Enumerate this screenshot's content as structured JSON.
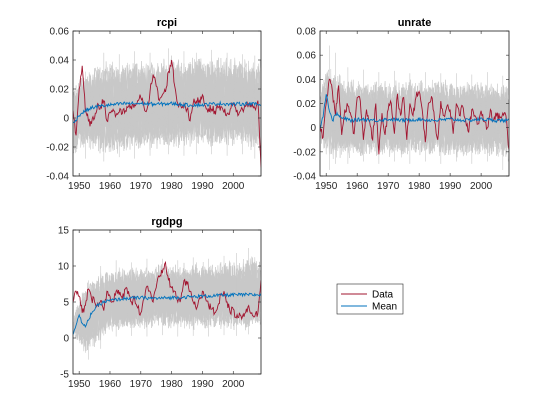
{
  "figure": {
    "colors": {
      "data": "#a2142f",
      "mean": "#0072bd",
      "simulations": "#c8c8c8",
      "axes": "#262626"
    },
    "legend": {
      "placement": "center, lower-right quadrant",
      "entries": [
        "Data",
        "Mean"
      ]
    }
  },
  "chart_data": [
    {
      "type": "line",
      "title": "rcpi",
      "xlim": [
        1948,
        2009
      ],
      "ylim": [
        -0.04,
        0.06
      ],
      "xticks": [
        1950,
        1960,
        1970,
        1980,
        1990,
        2000
      ],
      "yticks": [
        -0.04,
        -0.02,
        0,
        0.02,
        0.04,
        0.06
      ],
      "ytick_labels": [
        "-0.04",
        "-0.02",
        "0",
        "0.02",
        "0.04",
        "0.06"
      ],
      "grid": false,
      "band": {
        "x": [
          1948,
          1950,
          1953,
          1956,
          1960,
          1965,
          1970,
          1975,
          1980,
          1985,
          1990,
          1995,
          2000,
          2005,
          2009
        ],
        "lower": [
          -0.03,
          -0.022,
          -0.024,
          -0.026,
          -0.026,
          -0.024,
          -0.024,
          -0.023,
          -0.022,
          -0.022,
          -0.022,
          -0.022,
          -0.022,
          -0.022,
          -0.025
        ],
        "upper": [
          0.02,
          0.03,
          0.036,
          0.038,
          0.04,
          0.04,
          0.042,
          0.042,
          0.044,
          0.044,
          0.044,
          0.044,
          0.043,
          0.042,
          0.04
        ],
        "spikes": [
          [
            1952,
            -0.028,
            0.032
          ],
          [
            1958,
            -0.03,
            0.045
          ],
          [
            1963,
            -0.027,
            0.044
          ],
          [
            1968,
            -0.028,
            0.046
          ],
          [
            1973,
            -0.026,
            0.045
          ],
          [
            1979,
            -0.025,
            0.048
          ],
          [
            1984,
            -0.026,
            0.046
          ],
          [
            1988,
            -0.025,
            0.045
          ],
          [
            1993,
            -0.025,
            0.047
          ],
          [
            1998,
            -0.026,
            0.045
          ],
          [
            2003,
            -0.025,
            0.044
          ],
          [
            2007,
            -0.028,
            0.043
          ]
        ]
      },
      "series": [
        {
          "name": "Data",
          "x": [
            1948,
            1949,
            1950,
            1951,
            1952,
            1953,
            1954,
            1955,
            1956,
            1957,
            1958,
            1959,
            1960,
            1961,
            1962,
            1963,
            1964,
            1965,
            1966,
            1967,
            1968,
            1969,
            1970,
            1971,
            1972,
            1973,
            1974,
            1975,
            1976,
            1977,
            1978,
            1979,
            1980,
            1981,
            1982,
            1983,
            1984,
            1985,
            1986,
            1987,
            1988,
            1989,
            1990,
            1991,
            1992,
            1993,
            1994,
            1995,
            1996,
            1997,
            1998,
            1999,
            2000,
            2001,
            2002,
            2003,
            2004,
            2005,
            2006,
            2007,
            2008,
            2009
          ],
          "values": [
            0.005,
            -0.012,
            0.02,
            0.036,
            0.005,
            -0.002,
            -0.004,
            0.0,
            0.01,
            0.008,
            0.012,
            -0.002,
            0.004,
            0.006,
            0.002,
            0.004,
            0.003,
            0.005,
            0.008,
            0.006,
            0.009,
            0.012,
            0.014,
            0.008,
            0.006,
            0.018,
            0.03,
            0.022,
            0.012,
            0.016,
            0.018,
            0.032,
            0.04,
            0.022,
            0.01,
            0.008,
            0.01,
            0.006,
            -0.002,
            0.01,
            0.012,
            0.012,
            0.016,
            0.008,
            0.006,
            0.006,
            0.005,
            0.007,
            0.008,
            0.004,
            0.003,
            0.006,
            0.01,
            0.004,
            0.004,
            0.006,
            0.008,
            0.01,
            0.008,
            0.007,
            0.012,
            -0.034
          ]
        },
        {
          "name": "Mean",
          "x": [
            1948,
            1950,
            1952,
            1954,
            1956,
            1960,
            1965,
            1970,
            1975,
            1980,
            1985,
            1990,
            1995,
            2000,
            2005,
            2009
          ],
          "values": [
            -0.004,
            0.002,
            0.005,
            0.007,
            0.008,
            0.009,
            0.01,
            0.01,
            0.0095,
            0.01,
            0.009,
            0.009,
            0.01,
            0.0095,
            0.01,
            0.009
          ]
        }
      ]
    },
    {
      "type": "line",
      "title": "unrate",
      "xlim": [
        1948,
        2009
      ],
      "ylim": [
        -0.04,
        0.08
      ],
      "xticks": [
        1950,
        1960,
        1970,
        1980,
        1990,
        2000
      ],
      "yticks": [
        -0.04,
        -0.02,
        0,
        0.02,
        0.04,
        0.06,
        0.08
      ],
      "ytick_labels": [
        "-0.04",
        "-0.02",
        "0",
        "0.02",
        "0.04",
        "0.06",
        "0.08"
      ],
      "grid": false,
      "band": {
        "x": [
          1948,
          1950,
          1952,
          1954,
          1956,
          1960,
          1965,
          1970,
          1975,
          1980,
          1985,
          1990,
          1995,
          2000,
          2005,
          2009
        ],
        "lower": [
          -0.01,
          -0.025,
          -0.03,
          -0.028,
          -0.026,
          -0.026,
          -0.025,
          -0.025,
          -0.025,
          -0.025,
          -0.025,
          -0.025,
          -0.025,
          -0.025,
          -0.025,
          -0.03
        ],
        "upper": [
          0.03,
          0.055,
          0.05,
          0.045,
          0.042,
          0.04,
          0.04,
          0.04,
          0.04,
          0.04,
          0.04,
          0.04,
          0.04,
          0.04,
          0.04,
          0.035
        ],
        "spikes": [
          [
            1951,
            -0.035,
            0.068
          ],
          [
            1953,
            -0.03,
            0.062
          ],
          [
            1957,
            -0.03,
            0.05
          ],
          [
            1962,
            -0.028,
            0.048
          ],
          [
            1967,
            -0.03,
            0.046
          ],
          [
            1972,
            -0.028,
            0.047
          ],
          [
            1977,
            -0.03,
            0.045
          ],
          [
            1982,
            -0.028,
            0.046
          ],
          [
            1987,
            -0.03,
            0.045
          ],
          [
            1992,
            -0.028,
            0.045
          ],
          [
            1997,
            -0.03,
            0.044
          ],
          [
            2002,
            -0.028,
            0.046
          ],
          [
            2007,
            -0.035,
            0.043
          ]
        ]
      },
      "series": [
        {
          "name": "Data",
          "x": [
            1948,
            1949,
            1950,
            1951,
            1952,
            1953,
            1954,
            1955,
            1956,
            1957,
            1958,
            1959,
            1960,
            1961,
            1962,
            1963,
            1964,
            1965,
            1966,
            1967,
            1968,
            1969,
            1970,
            1971,
            1972,
            1973,
            1974,
            1975,
            1976,
            1977,
            1978,
            1979,
            1980,
            1981,
            1982,
            1983,
            1984,
            1985,
            1986,
            1987,
            1988,
            1989,
            1990,
            1991,
            1992,
            1993,
            1994,
            1995,
            1996,
            1997,
            1998,
            1999,
            2000,
            2001,
            2002,
            2003,
            2004,
            2005,
            2006,
            2007,
            2008,
            2009
          ],
          "values": [
            0.002,
            -0.008,
            0.02,
            0.04,
            0.03,
            0.01,
            0.035,
            -0.006,
            0.015,
            0.018,
            0.01,
            -0.005,
            0.025,
            0.022,
            -0.01,
            0.015,
            0.005,
            -0.01,
            0.02,
            -0.022,
            0.012,
            -0.006,
            0.015,
            0.02,
            -0.005,
            0.028,
            0.01,
            0.025,
            -0.01,
            0.02,
            0.01,
            0.025,
            0.03,
            0.015,
            -0.012,
            0.02,
            0.026,
            0.005,
            -0.01,
            0.022,
            0.01,
            0.018,
            0.015,
            -0.005,
            0.02,
            0.01,
            0.018,
            0.006,
            -0.004,
            0.015,
            0.01,
            0.003,
            0.014,
            0.005,
            0.0,
            0.015,
            0.006,
            0.01,
            0.008,
            0.012,
            0.01,
            -0.018
          ]
        },
        {
          "name": "Mean",
          "x": [
            1948,
            1949,
            1950,
            1951,
            1952,
            1953,
            1955,
            1958,
            1962,
            1966,
            1970,
            1975,
            1980,
            1985,
            1990,
            1995,
            2000,
            2005,
            2009
          ],
          "values": [
            0.0,
            0.01,
            0.028,
            0.015,
            0.005,
            0.012,
            0.008,
            0.006,
            0.007,
            0.006,
            0.007,
            0.006,
            0.007,
            0.006,
            0.007,
            0.006,
            0.007,
            0.006,
            0.006
          ]
        }
      ]
    },
    {
      "type": "line",
      "title": "rgdpg",
      "xlim": [
        1948,
        2009
      ],
      "ylim": [
        -5,
        15
      ],
      "xticks": [
        1950,
        1960,
        1970,
        1980,
        1990,
        2000
      ],
      "yticks": [
        -5,
        0,
        5,
        10,
        15
      ],
      "ytick_labels": [
        "-5",
        "0",
        "5",
        "10",
        "15"
      ],
      "grid": false,
      "band": {
        "x": [
          1948,
          1950,
          1952,
          1955,
          1958,
          1960,
          1965,
          1970,
          1975,
          1980,
          1985,
          1990,
          1995,
          2000,
          2005,
          2009
        ],
        "lower": [
          0.5,
          -1.2,
          -2.5,
          -1.5,
          0.0,
          0.8,
          1.0,
          1.0,
          1.2,
          1.0,
          1.0,
          1.0,
          1.0,
          1.0,
          1.0,
          1.2
        ],
        "upper": [
          2.5,
          5.5,
          7.5,
          8.5,
          9.5,
          9.8,
          10.0,
          10.2,
          10.5,
          10.5,
          10.5,
          10.8,
          10.8,
          11.0,
          11.5,
          11.0
        ],
        "spikes": [
          [
            1953,
            -3.0,
            8.0
          ],
          [
            1957,
            -1.5,
            10.0
          ],
          [
            1962,
            0.2,
            10.8
          ],
          [
            1967,
            0.3,
            10.5
          ],
          [
            1972,
            0.2,
            11.0
          ],
          [
            1977,
            0.4,
            11.0
          ],
          [
            1982,
            0.2,
            10.8
          ],
          [
            1987,
            0.3,
            11.2
          ],
          [
            1992,
            0.2,
            11.0
          ],
          [
            1997,
            0.4,
            11.4
          ],
          [
            2001,
            0.3,
            11.8
          ],
          [
            2005,
            0.5,
            12.5
          ]
        ]
      },
      "series": [
        {
          "name": "Data",
          "x": [
            1948,
            1949,
            1950,
            1951,
            1952,
            1953,
            1954,
            1955,
            1956,
            1957,
            1958,
            1959,
            1960,
            1961,
            1962,
            1963,
            1964,
            1965,
            1966,
            1967,
            1968,
            1969,
            1970,
            1971,
            1972,
            1973,
            1974,
            1975,
            1976,
            1977,
            1978,
            1979,
            1980,
            1981,
            1982,
            1983,
            1984,
            1985,
            1986,
            1987,
            1988,
            1989,
            1990,
            1991,
            1992,
            1993,
            1994,
            1995,
            1996,
            1997,
            1998,
            1999,
            2000,
            2001,
            2002,
            2003,
            2004,
            2005,
            2006,
            2007,
            2008,
            2009
          ],
          "values": [
            5.0,
            6.5,
            5.8,
            3.5,
            4.5,
            6.8,
            5.5,
            5.0,
            4.8,
            5.2,
            3.8,
            6.5,
            5.8,
            5.0,
            6.5,
            6.0,
            5.5,
            6.8,
            6.5,
            5.0,
            5.5,
            4.2,
            3.5,
            5.5,
            7.2,
            6.5,
            5.0,
            7.0,
            8.5,
            9.0,
            10.5,
            8.0,
            7.0,
            6.5,
            5.0,
            5.5,
            8.0,
            7.5,
            6.5,
            5.0,
            4.0,
            5.5,
            6.5,
            5.5,
            4.5,
            4.0,
            3.5,
            4.5,
            6.0,
            6.5,
            5.0,
            3.5,
            4.0,
            2.8,
            3.5,
            3.0,
            3.5,
            4.5,
            3.5,
            3.0,
            3.5,
            8.0
          ]
        },
        {
          "name": "Mean",
          "x": [
            1948,
            1949,
            1950,
            1951,
            1952,
            1953,
            1954,
            1956,
            1958,
            1960,
            1965,
            1970,
            1975,
            1980,
            1985,
            1990,
            1995,
            2000,
            2005,
            2009
          ],
          "values": [
            0.5,
            2.0,
            3.2,
            2.0,
            1.5,
            2.5,
            3.5,
            4.5,
            5.0,
            5.2,
            5.5,
            5.6,
            5.5,
            5.6,
            5.7,
            5.8,
            5.9,
            6.0,
            6.0,
            6.0
          ]
        }
      ]
    }
  ]
}
